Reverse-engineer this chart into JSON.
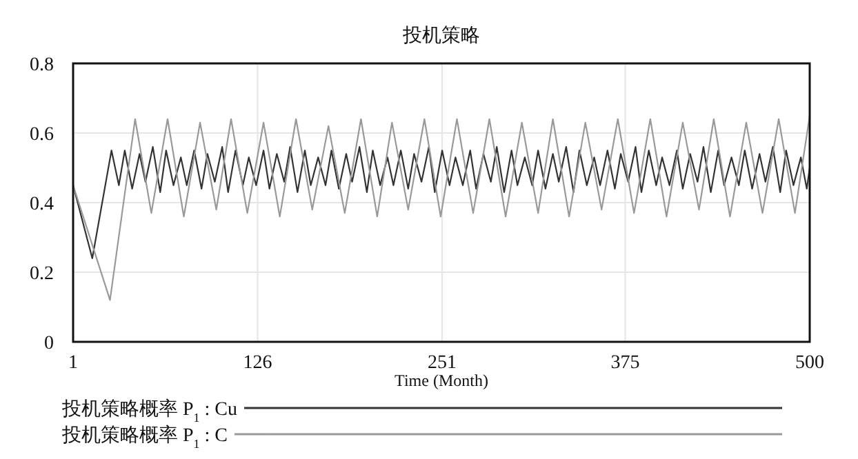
{
  "chart_data": {
    "type": "line",
    "title": "投机策略",
    "xlabel": "Time (Month)",
    "xlim": [
      1,
      500
    ],
    "xticks": [
      1,
      126,
      251,
      375,
      500
    ],
    "ylim": [
      0,
      0.8
    ],
    "yticks": [
      0,
      0.2,
      0.4,
      0.6,
      0.8
    ],
    "grid": true,
    "legend": "bottom",
    "line_style": "solid",
    "series": [
      {
        "name": "投机策略概率 P$_{1}$ : Cu",
        "color": "#333333",
        "x": [
          1,
          14,
          27,
          32,
          36,
          41,
          46,
          50,
          55,
          60,
          64,
          69,
          74,
          78,
          83,
          88,
          92,
          97,
          102,
          106,
          111,
          116,
          120,
          125,
          130,
          134,
          139,
          144,
          148,
          153,
          158,
          162,
          167,
          172,
          176,
          181,
          186,
          190,
          195,
          200,
          204,
          209,
          214,
          218,
          223,
          228,
          232,
          237,
          242,
          246,
          251,
          256,
          260,
          265,
          270,
          274,
          279,
          284,
          288,
          293,
          298,
          302,
          307,
          312,
          316,
          321,
          326,
          330,
          335,
          340,
          344,
          349,
          354,
          358,
          363,
          368,
          372,
          377,
          382,
          386,
          391,
          396,
          400,
          405,
          410,
          414,
          419,
          424,
          428,
          433,
          438,
          442,
          447,
          452,
          456,
          461,
          466,
          470,
          475,
          480,
          484,
          489,
          494,
          498,
          500
        ],
        "values": [
          0.45,
          0.24,
          0.55,
          0.45,
          0.55,
          0.44,
          0.54,
          0.46,
          0.56,
          0.43,
          0.55,
          0.45,
          0.53,
          0.45,
          0.55,
          0.44,
          0.54,
          0.46,
          0.56,
          0.43,
          0.55,
          0.45,
          0.53,
          0.45,
          0.55,
          0.44,
          0.54,
          0.46,
          0.56,
          0.43,
          0.55,
          0.45,
          0.53,
          0.45,
          0.55,
          0.44,
          0.54,
          0.46,
          0.56,
          0.43,
          0.55,
          0.45,
          0.53,
          0.45,
          0.55,
          0.44,
          0.54,
          0.46,
          0.56,
          0.43,
          0.55,
          0.45,
          0.53,
          0.45,
          0.55,
          0.44,
          0.54,
          0.46,
          0.56,
          0.43,
          0.55,
          0.45,
          0.53,
          0.45,
          0.55,
          0.44,
          0.54,
          0.46,
          0.56,
          0.43,
          0.55,
          0.45,
          0.53,
          0.45,
          0.55,
          0.44,
          0.54,
          0.46,
          0.56,
          0.43,
          0.55,
          0.45,
          0.53,
          0.45,
          0.55,
          0.44,
          0.54,
          0.46,
          0.56,
          0.43,
          0.55,
          0.45,
          0.53,
          0.45,
          0.55,
          0.44,
          0.54,
          0.46,
          0.56,
          0.43,
          0.55,
          0.45,
          0.53,
          0.44,
          0.5
        ]
      },
      {
        "name": "投机策略概率 P$_{1}$ : C",
        "color": "#999999",
        "x": [
          1,
          26,
          43,
          54,
          65,
          76,
          87,
          98,
          108,
          119,
          130,
          141,
          152,
          163,
          174,
          185,
          196,
          207,
          217,
          228,
          239,
          250,
          261,
          272,
          283,
          294,
          305,
          316,
          326,
          337,
          348,
          359,
          370,
          381,
          392,
          403,
          414,
          425,
          435,
          446,
          457,
          468,
          479,
          490,
          500
        ],
        "values": [
          0.45,
          0.12,
          0.64,
          0.37,
          0.64,
          0.36,
          0.63,
          0.38,
          0.64,
          0.37,
          0.63,
          0.36,
          0.64,
          0.38,
          0.62,
          0.37,
          0.64,
          0.36,
          0.63,
          0.38,
          0.64,
          0.36,
          0.64,
          0.37,
          0.64,
          0.36,
          0.63,
          0.37,
          0.64,
          0.36,
          0.63,
          0.38,
          0.64,
          0.37,
          0.64,
          0.36,
          0.63,
          0.38,
          0.64,
          0.36,
          0.63,
          0.37,
          0.64,
          0.37,
          0.65
        ]
      }
    ]
  }
}
